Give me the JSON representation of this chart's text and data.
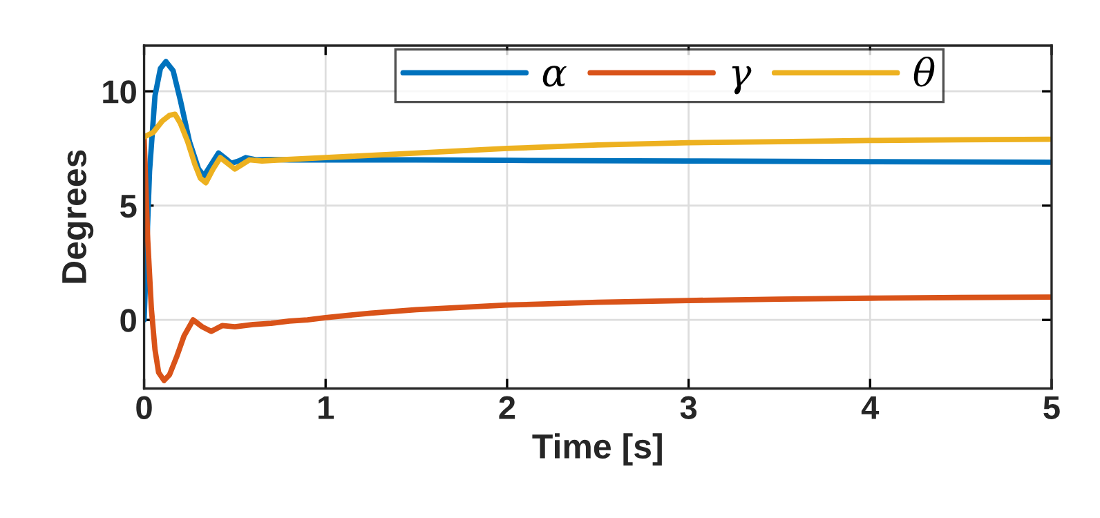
{
  "chart_data": {
    "type": "line",
    "xlabel": "Time [s]",
    "ylabel": "Degrees",
    "xlim": [
      0,
      5
    ],
    "ylim": [
      -3,
      12
    ],
    "xticks": [
      0,
      1,
      2,
      3,
      4,
      5
    ],
    "yticks": [
      0,
      5,
      10
    ],
    "grid": true,
    "legend": "top right",
    "line_style": "solid",
    "marker": "none",
    "series": [
      {
        "name": "α",
        "color": "#0072bd",
        "x": [
          0,
          0.03,
          0.06,
          0.09,
          0.12,
          0.16,
          0.2,
          0.25,
          0.3,
          0.33,
          0.37,
          0.41,
          0.45,
          0.48,
          0.52,
          0.56,
          0.62,
          0.7,
          0.8,
          1,
          1.5,
          2,
          3,
          4,
          5
        ],
        "values": [
          0,
          6.5,
          9.8,
          11.0,
          11.3,
          10.9,
          9.6,
          7.8,
          6.6,
          6.3,
          6.8,
          7.3,
          7.05,
          6.85,
          6.95,
          7.1,
          7.0,
          7.02,
          7.0,
          7.0,
          7.0,
          6.98,
          6.95,
          6.92,
          6.9
        ]
      },
      {
        "name": "γ",
        "color": "#d95319",
        "x": [
          0,
          0.02,
          0.04,
          0.06,
          0.08,
          0.11,
          0.14,
          0.18,
          0.22,
          0.27,
          0.32,
          0.37,
          0.43,
          0.5,
          0.6,
          0.7,
          0.8,
          0.9,
          1,
          1.25,
          1.5,
          2,
          2.5,
          3,
          3.5,
          4,
          4.5,
          5
        ],
        "values": [
          8,
          3.5,
          0.5,
          -1.3,
          -2.3,
          -2.65,
          -2.4,
          -1.6,
          -0.7,
          0.0,
          -0.3,
          -0.5,
          -0.25,
          -0.3,
          -0.2,
          -0.15,
          -0.05,
          0.0,
          0.1,
          0.3,
          0.45,
          0.65,
          0.77,
          0.85,
          0.91,
          0.95,
          0.98,
          1.0
        ]
      },
      {
        "name": "θ",
        "color": "#edb120",
        "x": [
          0,
          0.05,
          0.1,
          0.14,
          0.17,
          0.2,
          0.24,
          0.28,
          0.31,
          0.34,
          0.38,
          0.42,
          0.46,
          0.5,
          0.54,
          0.58,
          0.65,
          0.75,
          1,
          1.5,
          2,
          2.5,
          3,
          3.5,
          4,
          4.5,
          5
        ],
        "values": [
          8,
          8.2,
          8.7,
          8.95,
          9.0,
          8.6,
          7.8,
          6.8,
          6.2,
          6.0,
          6.6,
          7.1,
          6.85,
          6.6,
          6.8,
          7.0,
          6.95,
          7.0,
          7.1,
          7.3,
          7.5,
          7.65,
          7.75,
          7.8,
          7.85,
          7.88,
          7.9
        ]
      }
    ]
  }
}
